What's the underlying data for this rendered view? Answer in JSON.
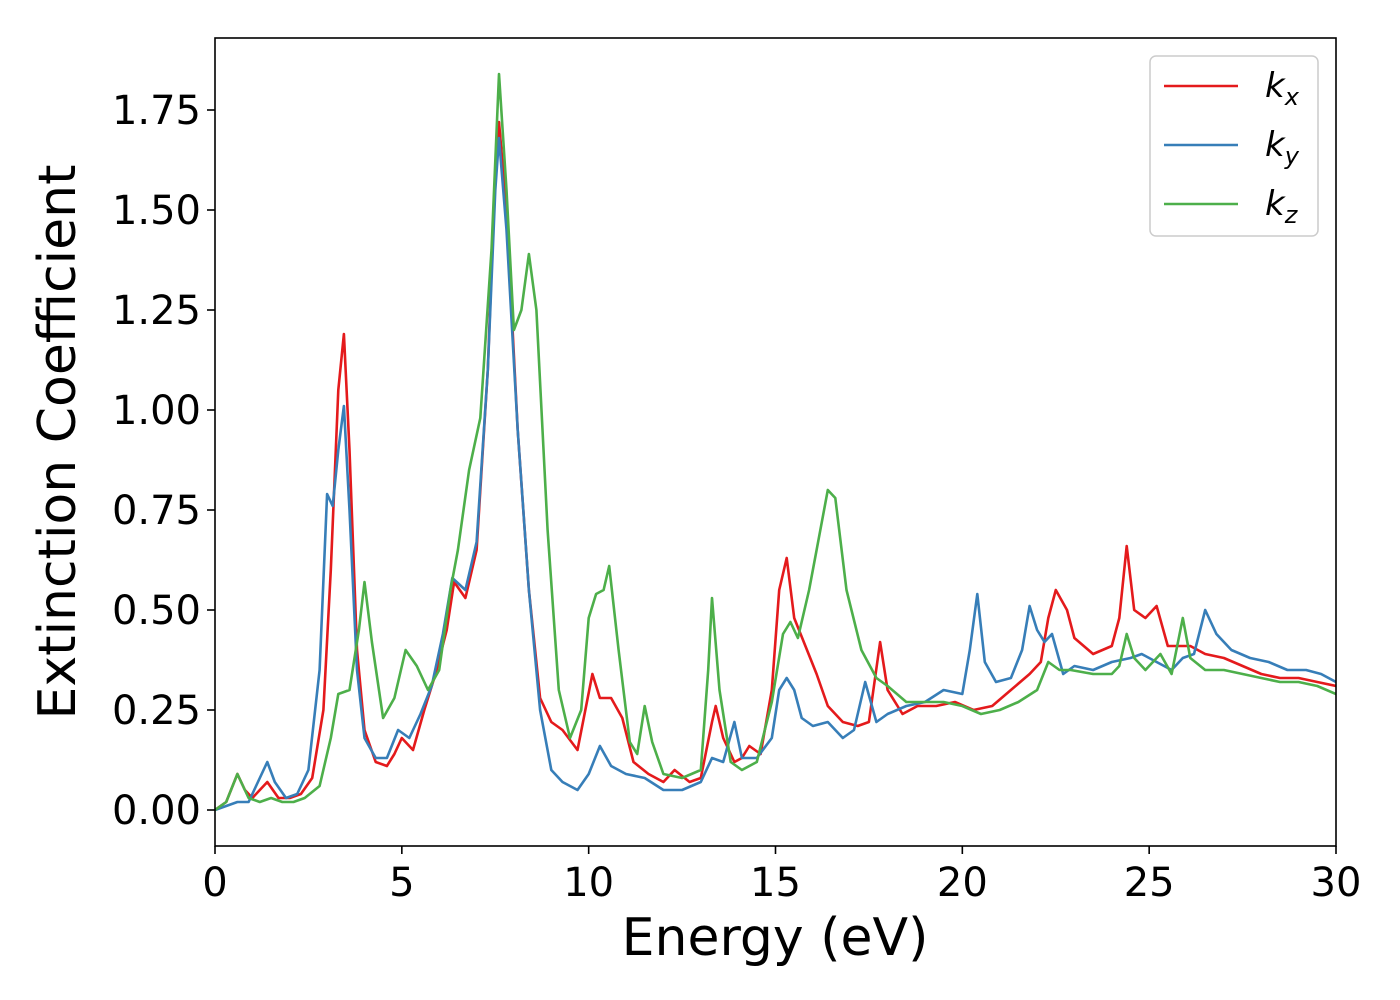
{
  "chart_data": {
    "type": "line",
    "xlabel": "Energy (eV)",
    "ylabel": "Extinction Coefficient",
    "xlim": [
      0,
      30
    ],
    "ylim": [
      -0.09,
      1.93
    ],
    "xticks": [
      0,
      5,
      10,
      15,
      20,
      25,
      30
    ],
    "xtick_labels": [
      "0",
      "5",
      "10",
      "15",
      "20",
      "25",
      "30"
    ],
    "yticks": [
      0.0,
      0.25,
      0.5,
      0.75,
      1.0,
      1.25,
      1.5,
      1.75
    ],
    "ytick_labels": [
      "0.00",
      "0.25",
      "0.50",
      "0.75",
      "1.00",
      "1.25",
      "1.50",
      "1.75"
    ],
    "grid": false,
    "legend_position": "top-right",
    "series": [
      {
        "name": "kx",
        "label_base": "k",
        "label_sub": "x",
        "color": "#e41a1c",
        "points": [
          [
            0,
            0
          ],
          [
            0.3,
            0.02
          ],
          [
            0.6,
            0.09
          ],
          [
            0.8,
            0.05
          ],
          [
            1.0,
            0.03
          ],
          [
            1.2,
            0.05
          ],
          [
            1.4,
            0.07
          ],
          [
            1.7,
            0.03
          ],
          [
            2.0,
            0.03
          ],
          [
            2.3,
            0.04
          ],
          [
            2.6,
            0.08
          ],
          [
            2.9,
            0.25
          ],
          [
            3.1,
            0.6
          ],
          [
            3.3,
            1.05
          ],
          [
            3.45,
            1.19
          ],
          [
            3.6,
            0.9
          ],
          [
            3.8,
            0.4
          ],
          [
            4.0,
            0.2
          ],
          [
            4.3,
            0.12
          ],
          [
            4.6,
            0.11
          ],
          [
            4.8,
            0.14
          ],
          [
            5.0,
            0.18
          ],
          [
            5.3,
            0.15
          ],
          [
            5.6,
            0.25
          ],
          [
            5.9,
            0.34
          ],
          [
            6.2,
            0.45
          ],
          [
            6.4,
            0.57
          ],
          [
            6.7,
            0.53
          ],
          [
            7.0,
            0.65
          ],
          [
            7.3,
            1.1
          ],
          [
            7.5,
            1.6
          ],
          [
            7.6,
            1.72
          ],
          [
            7.8,
            1.5
          ],
          [
            8.1,
            0.95
          ],
          [
            8.4,
            0.55
          ],
          [
            8.7,
            0.28
          ],
          [
            9.0,
            0.22
          ],
          [
            9.3,
            0.2
          ],
          [
            9.7,
            0.15
          ],
          [
            10.1,
            0.34
          ],
          [
            10.3,
            0.28
          ],
          [
            10.6,
            0.28
          ],
          [
            10.9,
            0.23
          ],
          [
            11.2,
            0.12
          ],
          [
            11.6,
            0.09
          ],
          [
            12.0,
            0.07
          ],
          [
            12.3,
            0.1
          ],
          [
            12.7,
            0.07
          ],
          [
            13.0,
            0.08
          ],
          [
            13.3,
            0.22
          ],
          [
            13.4,
            0.26
          ],
          [
            13.6,
            0.18
          ],
          [
            13.9,
            0.12
          ],
          [
            14.1,
            0.13
          ],
          [
            14.3,
            0.16
          ],
          [
            14.6,
            0.14
          ],
          [
            14.9,
            0.3
          ],
          [
            15.1,
            0.55
          ],
          [
            15.3,
            0.63
          ],
          [
            15.5,
            0.48
          ],
          [
            15.8,
            0.41
          ],
          [
            16.1,
            0.34
          ],
          [
            16.4,
            0.26
          ],
          [
            16.8,
            0.22
          ],
          [
            17.2,
            0.21
          ],
          [
            17.5,
            0.22
          ],
          [
            17.8,
            0.42
          ],
          [
            18.0,
            0.3
          ],
          [
            18.4,
            0.24
          ],
          [
            18.8,
            0.26
          ],
          [
            19.3,
            0.26
          ],
          [
            19.8,
            0.27
          ],
          [
            20.3,
            0.25
          ],
          [
            20.8,
            0.26
          ],
          [
            21.3,
            0.3
          ],
          [
            21.8,
            0.34
          ],
          [
            22.1,
            0.37
          ],
          [
            22.3,
            0.48
          ],
          [
            22.5,
            0.55
          ],
          [
            22.8,
            0.5
          ],
          [
            23.0,
            0.43
          ],
          [
            23.5,
            0.39
          ],
          [
            24.0,
            0.41
          ],
          [
            24.2,
            0.48
          ],
          [
            24.4,
            0.66
          ],
          [
            24.6,
            0.5
          ],
          [
            24.9,
            0.48
          ],
          [
            25.2,
            0.51
          ],
          [
            25.5,
            0.41
          ],
          [
            25.8,
            0.41
          ],
          [
            26.1,
            0.41
          ],
          [
            26.5,
            0.39
          ],
          [
            27.0,
            0.38
          ],
          [
            27.5,
            0.36
          ],
          [
            28.0,
            0.34
          ],
          [
            28.5,
            0.33
          ],
          [
            29.0,
            0.33
          ],
          [
            29.5,
            0.32
          ],
          [
            30.0,
            0.31
          ]
        ]
      },
      {
        "name": "ky",
        "label_base": "k",
        "label_sub": "y",
        "color": "#377eb8",
        "points": [
          [
            0,
            0
          ],
          [
            0.3,
            0.01
          ],
          [
            0.6,
            0.02
          ],
          [
            0.9,
            0.02
          ],
          [
            1.2,
            0.08
          ],
          [
            1.4,
            0.12
          ],
          [
            1.6,
            0.07
          ],
          [
            1.9,
            0.03
          ],
          [
            2.2,
            0.04
          ],
          [
            2.5,
            0.1
          ],
          [
            2.8,
            0.35
          ],
          [
            3.0,
            0.79
          ],
          [
            3.15,
            0.76
          ],
          [
            3.3,
            0.9
          ],
          [
            3.45,
            1.01
          ],
          [
            3.6,
            0.75
          ],
          [
            3.8,
            0.35
          ],
          [
            4.0,
            0.18
          ],
          [
            4.3,
            0.13
          ],
          [
            4.6,
            0.13
          ],
          [
            4.9,
            0.2
          ],
          [
            5.2,
            0.18
          ],
          [
            5.5,
            0.24
          ],
          [
            5.8,
            0.31
          ],
          [
            6.1,
            0.44
          ],
          [
            6.35,
            0.58
          ],
          [
            6.7,
            0.55
          ],
          [
            7.0,
            0.67
          ],
          [
            7.3,
            1.1
          ],
          [
            7.5,
            1.55
          ],
          [
            7.6,
            1.68
          ],
          [
            7.8,
            1.45
          ],
          [
            8.1,
            0.95
          ],
          [
            8.4,
            0.55
          ],
          [
            8.7,
            0.25
          ],
          [
            9.0,
            0.1
          ],
          [
            9.3,
            0.07
          ],
          [
            9.7,
            0.05
          ],
          [
            10.0,
            0.09
          ],
          [
            10.3,
            0.16
          ],
          [
            10.6,
            0.11
          ],
          [
            11.0,
            0.09
          ],
          [
            11.5,
            0.08
          ],
          [
            12.0,
            0.05
          ],
          [
            12.5,
            0.05
          ],
          [
            13.0,
            0.07
          ],
          [
            13.3,
            0.13
          ],
          [
            13.6,
            0.12
          ],
          [
            13.9,
            0.22
          ],
          [
            14.1,
            0.13
          ],
          [
            14.5,
            0.13
          ],
          [
            14.9,
            0.18
          ],
          [
            15.1,
            0.3
          ],
          [
            15.3,
            0.33
          ],
          [
            15.5,
            0.3
          ],
          [
            15.7,
            0.23
          ],
          [
            16.0,
            0.21
          ],
          [
            16.4,
            0.22
          ],
          [
            16.8,
            0.18
          ],
          [
            17.1,
            0.2
          ],
          [
            17.4,
            0.32
          ],
          [
            17.7,
            0.22
          ],
          [
            18.0,
            0.24
          ],
          [
            18.5,
            0.26
          ],
          [
            19.0,
            0.27
          ],
          [
            19.5,
            0.3
          ],
          [
            20.0,
            0.29
          ],
          [
            20.2,
            0.4
          ],
          [
            20.4,
            0.54
          ],
          [
            20.6,
            0.37
          ],
          [
            20.9,
            0.32
          ],
          [
            21.3,
            0.33
          ],
          [
            21.6,
            0.4
          ],
          [
            21.8,
            0.51
          ],
          [
            22.0,
            0.45
          ],
          [
            22.2,
            0.42
          ],
          [
            22.4,
            0.44
          ],
          [
            22.7,
            0.34
          ],
          [
            23.0,
            0.36
          ],
          [
            23.5,
            0.35
          ],
          [
            24.0,
            0.37
          ],
          [
            24.5,
            0.38
          ],
          [
            24.8,
            0.39
          ],
          [
            25.2,
            0.37
          ],
          [
            25.6,
            0.35
          ],
          [
            25.9,
            0.38
          ],
          [
            26.2,
            0.39
          ],
          [
            26.5,
            0.5
          ],
          [
            26.8,
            0.44
          ],
          [
            27.2,
            0.4
          ],
          [
            27.7,
            0.38
          ],
          [
            28.2,
            0.37
          ],
          [
            28.7,
            0.35
          ],
          [
            29.2,
            0.35
          ],
          [
            29.6,
            0.34
          ],
          [
            30.0,
            0.32
          ]
        ]
      },
      {
        "name": "kz",
        "label_base": "k",
        "label_sub": "z",
        "color": "#4daf4a",
        "points": [
          [
            0,
            0
          ],
          [
            0.3,
            0.02
          ],
          [
            0.6,
            0.09
          ],
          [
            0.9,
            0.03
          ],
          [
            1.2,
            0.02
          ],
          [
            1.5,
            0.03
          ],
          [
            1.8,
            0.02
          ],
          [
            2.1,
            0.02
          ],
          [
            2.4,
            0.03
          ],
          [
            2.8,
            0.06
          ],
          [
            3.1,
            0.18
          ],
          [
            3.3,
            0.29
          ],
          [
            3.6,
            0.3
          ],
          [
            3.85,
            0.45
          ],
          [
            4.0,
            0.57
          ],
          [
            4.2,
            0.42
          ],
          [
            4.5,
            0.23
          ],
          [
            4.8,
            0.28
          ],
          [
            5.1,
            0.4
          ],
          [
            5.4,
            0.36
          ],
          [
            5.7,
            0.3
          ],
          [
            6.0,
            0.35
          ],
          [
            6.3,
            0.55
          ],
          [
            6.5,
            0.65
          ],
          [
            6.8,
            0.85
          ],
          [
            7.1,
            0.98
          ],
          [
            7.4,
            1.4
          ],
          [
            7.6,
            1.84
          ],
          [
            7.8,
            1.55
          ],
          [
            8.0,
            1.2
          ],
          [
            8.2,
            1.25
          ],
          [
            8.4,
            1.39
          ],
          [
            8.6,
            1.25
          ],
          [
            8.9,
            0.7
          ],
          [
            9.2,
            0.3
          ],
          [
            9.5,
            0.18
          ],
          [
            9.8,
            0.25
          ],
          [
            10.0,
            0.48
          ],
          [
            10.2,
            0.54
          ],
          [
            10.4,
            0.55
          ],
          [
            10.55,
            0.61
          ],
          [
            10.8,
            0.4
          ],
          [
            11.1,
            0.17
          ],
          [
            11.3,
            0.14
          ],
          [
            11.5,
            0.26
          ],
          [
            11.7,
            0.17
          ],
          [
            12.0,
            0.09
          ],
          [
            12.5,
            0.08
          ],
          [
            13.0,
            0.1
          ],
          [
            13.2,
            0.35
          ],
          [
            13.3,
            0.53
          ],
          [
            13.5,
            0.3
          ],
          [
            13.8,
            0.12
          ],
          [
            14.1,
            0.1
          ],
          [
            14.5,
            0.12
          ],
          [
            14.9,
            0.27
          ],
          [
            15.2,
            0.44
          ],
          [
            15.4,
            0.47
          ],
          [
            15.6,
            0.43
          ],
          [
            15.9,
            0.55
          ],
          [
            16.1,
            0.65
          ],
          [
            16.4,
            0.8
          ],
          [
            16.6,
            0.78
          ],
          [
            16.9,
            0.55
          ],
          [
            17.3,
            0.4
          ],
          [
            17.7,
            0.33
          ],
          [
            18.0,
            0.31
          ],
          [
            18.5,
            0.27
          ],
          [
            19.0,
            0.27
          ],
          [
            19.5,
            0.27
          ],
          [
            20.0,
            0.26
          ],
          [
            20.5,
            0.24
          ],
          [
            21.0,
            0.25
          ],
          [
            21.5,
            0.27
          ],
          [
            22.0,
            0.3
          ],
          [
            22.3,
            0.37
          ],
          [
            22.6,
            0.35
          ],
          [
            22.9,
            0.35
          ],
          [
            23.5,
            0.34
          ],
          [
            24.0,
            0.34
          ],
          [
            24.2,
            0.36
          ],
          [
            24.4,
            0.44
          ],
          [
            24.6,
            0.38
          ],
          [
            24.9,
            0.35
          ],
          [
            25.3,
            0.39
          ],
          [
            25.6,
            0.34
          ],
          [
            25.9,
            0.48
          ],
          [
            26.1,
            0.38
          ],
          [
            26.5,
            0.35
          ],
          [
            27.0,
            0.35
          ],
          [
            27.5,
            0.34
          ],
          [
            28.0,
            0.33
          ],
          [
            28.5,
            0.32
          ],
          [
            29.0,
            0.32
          ],
          [
            29.5,
            0.31
          ],
          [
            30.0,
            0.29
          ]
        ]
      }
    ]
  }
}
